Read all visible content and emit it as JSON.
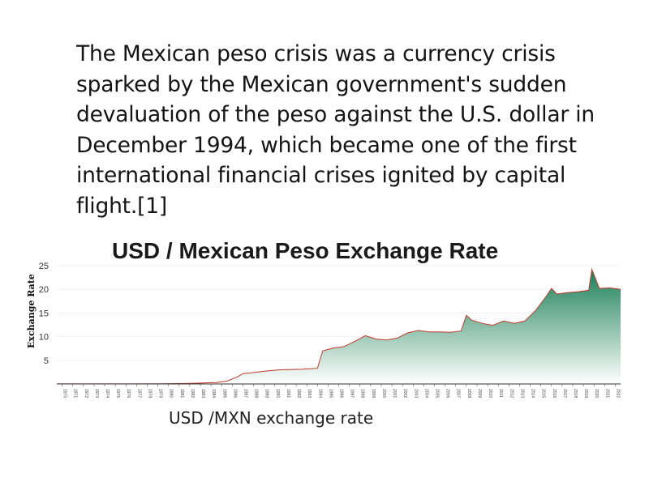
{
  "slide": {
    "body_text": "The Mexican peso crisis was a currency crisis sparked by the Mexican government's sudden devaluation of the peso against the U.S. dollar in December 1994, which became one of the first international financial crises ignited by capital flight.[1]",
    "caption": "USD /MXN exchange rate"
  },
  "chart_data": {
    "type": "area",
    "title": "USD  / Mexican Peso Exchange Rate",
    "ylabel": "Exchange Rate",
    "xlabel": "",
    "ylim": [
      0,
      25
    ],
    "yticks": [
      5,
      10,
      15,
      20,
      25
    ],
    "xlim": [
      1970,
      2023
    ],
    "xticks": [
      1970,
      1971,
      1972,
      1973,
      1974,
      1975,
      1976,
      1977,
      1978,
      1979,
      1980,
      1981,
      1982,
      1983,
      1984,
      1985,
      1986,
      1987,
      1988,
      1989,
      1990,
      1991,
      1992,
      1993,
      1994,
      1995,
      1996,
      1997,
      1998,
      1999,
      2000,
      2001,
      2002,
      2003,
      2004,
      2005,
      2006,
      2007,
      2008,
      2009,
      2010,
      2011,
      2012,
      2013,
      2014,
      2015,
      2016,
      2017,
      2018,
      2019,
      2020,
      2021,
      2022
    ],
    "series": [
      {
        "x": [
          1970,
          1976,
          1977,
          1980,
          1982,
          1983,
          1985,
          1986,
          1987,
          1987.5,
          1988,
          1990,
          1991,
          1993,
          1994.5,
          1995,
          1996,
          1997,
          1998,
          1999,
          2000,
          2001,
          2002,
          2003,
          2004,
          2005,
          2006,
          2007,
          2008,
          2008.5,
          2009,
          2010,
          2011,
          2012,
          2013,
          2014,
          2015,
          2016,
          2016.5,
          2017,
          2018,
          2019,
          2020,
          2020.3,
          2021,
          2022,
          2023
        ],
        "y": [
          0.0125,
          0.015,
          0.025,
          0.026,
          0.1,
          0.15,
          0.3,
          0.6,
          1.5,
          2.2,
          2.3,
          2.8,
          3.0,
          3.1,
          3.3,
          7.0,
          7.6,
          7.9,
          9.0,
          10.2,
          9.5,
          9.3,
          9.7,
          10.8,
          11.3,
          11.0,
          11.0,
          10.9,
          11.2,
          14.5,
          13.5,
          12.8,
          12.4,
          13.3,
          12.8,
          13.3,
          15.5,
          18.5,
          20.2,
          19.0,
          19.3,
          19.5,
          19.8,
          24.2,
          20.2,
          20.3,
          20.0
        ]
      }
    ],
    "colors": {
      "line": "#c0392b",
      "fill_top": "#1a7f57",
      "fill_bottom": "#ffffff"
    },
    "grid": true,
    "legend": "none"
  }
}
